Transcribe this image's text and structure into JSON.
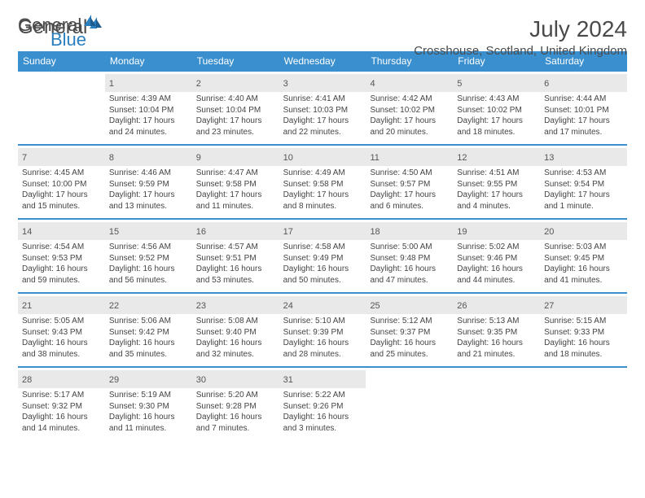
{
  "logo": {
    "text1": "General",
    "text2": "Blue"
  },
  "title": "July 2024",
  "location": "Crosshouse, Scotland, United Kingdom",
  "colors": {
    "header_bg": "#3a8fce",
    "header_text": "#ffffff",
    "daynum_bg": "#e9e9e9",
    "border": "#3a8fce",
    "text": "#444444",
    "title_text": "#4a4a4a"
  },
  "day_names": [
    "Sunday",
    "Monday",
    "Tuesday",
    "Wednesday",
    "Thursday",
    "Friday",
    "Saturday"
  ],
  "weeks": [
    [
      {
        "n": "",
        "sr": "",
        "ss": "",
        "dl": ""
      },
      {
        "n": "1",
        "sr": "4:39 AM",
        "ss": "10:04 PM",
        "dl": "17 hours and 24 minutes."
      },
      {
        "n": "2",
        "sr": "4:40 AM",
        "ss": "10:04 PM",
        "dl": "17 hours and 23 minutes."
      },
      {
        "n": "3",
        "sr": "4:41 AM",
        "ss": "10:03 PM",
        "dl": "17 hours and 22 minutes."
      },
      {
        "n": "4",
        "sr": "4:42 AM",
        "ss": "10:02 PM",
        "dl": "17 hours and 20 minutes."
      },
      {
        "n": "5",
        "sr": "4:43 AM",
        "ss": "10:02 PM",
        "dl": "17 hours and 18 minutes."
      },
      {
        "n": "6",
        "sr": "4:44 AM",
        "ss": "10:01 PM",
        "dl": "17 hours and 17 minutes."
      }
    ],
    [
      {
        "n": "7",
        "sr": "4:45 AM",
        "ss": "10:00 PM",
        "dl": "17 hours and 15 minutes."
      },
      {
        "n": "8",
        "sr": "4:46 AM",
        "ss": "9:59 PM",
        "dl": "17 hours and 13 minutes."
      },
      {
        "n": "9",
        "sr": "4:47 AM",
        "ss": "9:58 PM",
        "dl": "17 hours and 11 minutes."
      },
      {
        "n": "10",
        "sr": "4:49 AM",
        "ss": "9:58 PM",
        "dl": "17 hours and 8 minutes."
      },
      {
        "n": "11",
        "sr": "4:50 AM",
        "ss": "9:57 PM",
        "dl": "17 hours and 6 minutes."
      },
      {
        "n": "12",
        "sr": "4:51 AM",
        "ss": "9:55 PM",
        "dl": "17 hours and 4 minutes."
      },
      {
        "n": "13",
        "sr": "4:53 AM",
        "ss": "9:54 PM",
        "dl": "17 hours and 1 minute."
      }
    ],
    [
      {
        "n": "14",
        "sr": "4:54 AM",
        "ss": "9:53 PM",
        "dl": "16 hours and 59 minutes."
      },
      {
        "n": "15",
        "sr": "4:56 AM",
        "ss": "9:52 PM",
        "dl": "16 hours and 56 minutes."
      },
      {
        "n": "16",
        "sr": "4:57 AM",
        "ss": "9:51 PM",
        "dl": "16 hours and 53 minutes."
      },
      {
        "n": "17",
        "sr": "4:58 AM",
        "ss": "9:49 PM",
        "dl": "16 hours and 50 minutes."
      },
      {
        "n": "18",
        "sr": "5:00 AM",
        "ss": "9:48 PM",
        "dl": "16 hours and 47 minutes."
      },
      {
        "n": "19",
        "sr": "5:02 AM",
        "ss": "9:46 PM",
        "dl": "16 hours and 44 minutes."
      },
      {
        "n": "20",
        "sr": "5:03 AM",
        "ss": "9:45 PM",
        "dl": "16 hours and 41 minutes."
      }
    ],
    [
      {
        "n": "21",
        "sr": "5:05 AM",
        "ss": "9:43 PM",
        "dl": "16 hours and 38 minutes."
      },
      {
        "n": "22",
        "sr": "5:06 AM",
        "ss": "9:42 PM",
        "dl": "16 hours and 35 minutes."
      },
      {
        "n": "23",
        "sr": "5:08 AM",
        "ss": "9:40 PM",
        "dl": "16 hours and 32 minutes."
      },
      {
        "n": "24",
        "sr": "5:10 AM",
        "ss": "9:39 PM",
        "dl": "16 hours and 28 minutes."
      },
      {
        "n": "25",
        "sr": "5:12 AM",
        "ss": "9:37 PM",
        "dl": "16 hours and 25 minutes."
      },
      {
        "n": "26",
        "sr": "5:13 AM",
        "ss": "9:35 PM",
        "dl": "16 hours and 21 minutes."
      },
      {
        "n": "27",
        "sr": "5:15 AM",
        "ss": "9:33 PM",
        "dl": "16 hours and 18 minutes."
      }
    ],
    [
      {
        "n": "28",
        "sr": "5:17 AM",
        "ss": "9:32 PM",
        "dl": "16 hours and 14 minutes."
      },
      {
        "n": "29",
        "sr": "5:19 AM",
        "ss": "9:30 PM",
        "dl": "16 hours and 11 minutes."
      },
      {
        "n": "30",
        "sr": "5:20 AM",
        "ss": "9:28 PM",
        "dl": "16 hours and 7 minutes."
      },
      {
        "n": "31",
        "sr": "5:22 AM",
        "ss": "9:26 PM",
        "dl": "16 hours and 3 minutes."
      },
      {
        "n": "",
        "sr": "",
        "ss": "",
        "dl": ""
      },
      {
        "n": "",
        "sr": "",
        "ss": "",
        "dl": ""
      },
      {
        "n": "",
        "sr": "",
        "ss": "",
        "dl": ""
      }
    ]
  ],
  "labels": {
    "sunrise": "Sunrise:",
    "sunset": "Sunset:",
    "daylight": "Daylight:"
  }
}
